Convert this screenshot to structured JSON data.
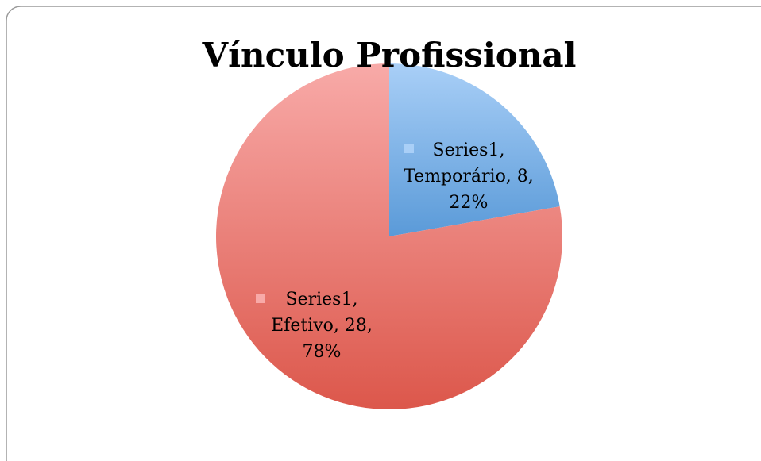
{
  "chart_data": {
    "type": "pie",
    "title": "Vínculo Profissional",
    "series": [
      {
        "name": "Series1",
        "values": [
          8,
          28
        ]
      }
    ],
    "categories": [
      "Temporário",
      "Efetivo"
    ],
    "colors": [
      [
        "#a9cff7",
        "#5a9ad8"
      ],
      [
        "#f8aaa8",
        "#dc574b"
      ]
    ],
    "value_labels": [
      [
        "Series1,",
        "Temporário, 8,",
        "22%"
      ],
      [
        "Series1,",
        "Efetivo, 28,",
        "78%"
      ]
    ]
  }
}
